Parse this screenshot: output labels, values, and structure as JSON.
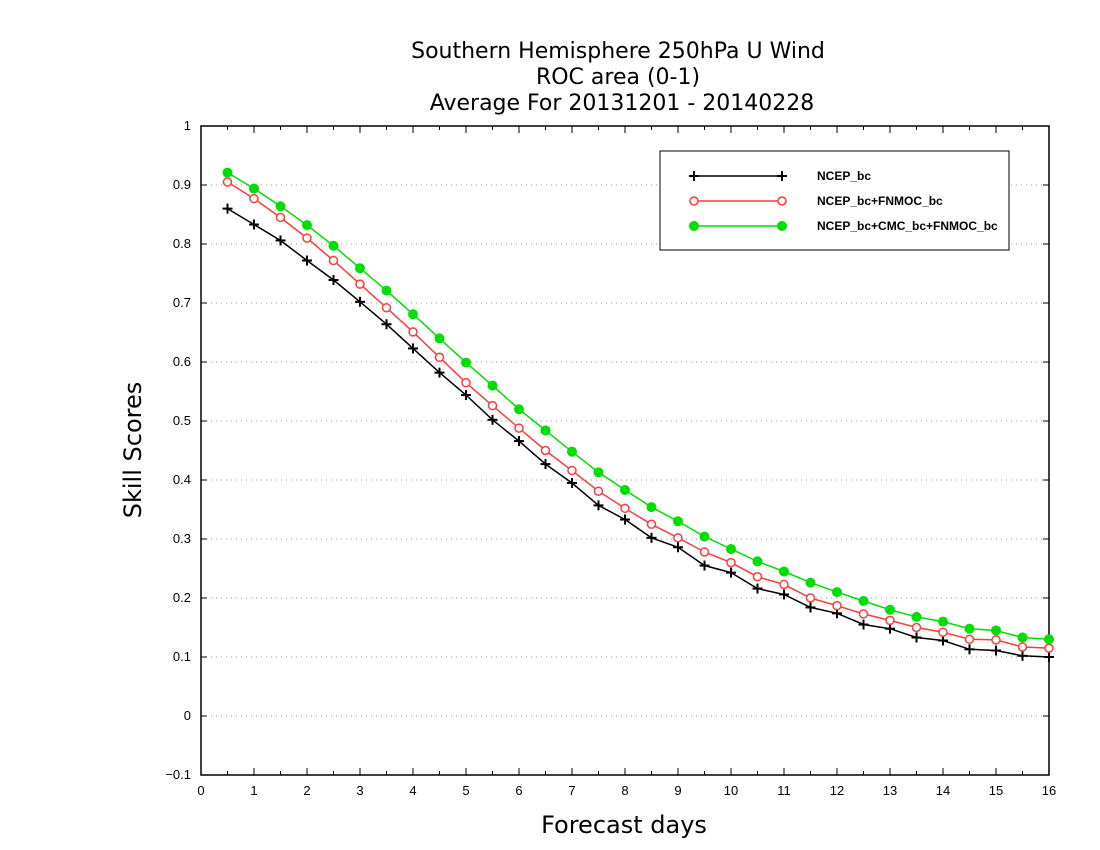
{
  "chart_data": {
    "type": "line",
    "title": [
      "Southern Hemisphere 250hPa U Wind",
      "ROC area (0-1)",
      "Average For 20131201 - 20140228"
    ],
    "xlabel": "Forecast days",
    "ylabel": "Skill Scores",
    "xlim": [
      0,
      16
    ],
    "ylim": [
      -0.1,
      1
    ],
    "xticks": [
      "0",
      "1",
      "2",
      "3",
      "4",
      "5",
      "6",
      "7",
      "8",
      "9",
      "10",
      "11",
      "12",
      "13",
      "14",
      "15",
      "16"
    ],
    "yticks": [
      "−0.1",
      "0",
      "0.1",
      "0.2",
      "0.3",
      "0.4",
      "0.5",
      "0.6",
      "0.7",
      "0.8",
      "0.9",
      "1"
    ],
    "ytick_values": [
      -0.1,
      0,
      0.1,
      0.2,
      0.3,
      0.4,
      0.5,
      0.6,
      0.7,
      0.8,
      0.9,
      1.0
    ],
    "grid": true,
    "legend_position": "top-right",
    "x": [
      0.5,
      1,
      1.5,
      2,
      2.5,
      3,
      3.5,
      4,
      4.5,
      5,
      5.5,
      6,
      6.5,
      7,
      7.5,
      8,
      8.5,
      9,
      9.5,
      10,
      10.5,
      11,
      11.5,
      12,
      12.5,
      13,
      13.5,
      14,
      14.5,
      15,
      15.5,
      16
    ],
    "series": [
      {
        "name": "NCEP_bc",
        "color": "#000000",
        "marker": "plus",
        "values": [
          0.86,
          0.833,
          0.806,
          0.772,
          0.739,
          0.702,
          0.664,
          0.623,
          0.582,
          0.544,
          0.502,
          0.466,
          0.427,
          0.395,
          0.357,
          0.333,
          0.302,
          0.286,
          0.255,
          0.243,
          0.216,
          0.206,
          0.184,
          0.174,
          0.155,
          0.148,
          0.133,
          0.128,
          0.113,
          0.111,
          0.102,
          0.1
        ]
      },
      {
        "name": "NCEP_bc+FNMOC_bc",
        "color": "#ff3b3b",
        "marker": "open-circle",
        "values": [
          0.905,
          0.877,
          0.845,
          0.81,
          0.772,
          0.732,
          0.692,
          0.651,
          0.608,
          0.565,
          0.526,
          0.488,
          0.45,
          0.416,
          0.381,
          0.352,
          0.325,
          0.302,
          0.278,
          0.26,
          0.236,
          0.223,
          0.2,
          0.187,
          0.173,
          0.162,
          0.15,
          0.142,
          0.13,
          0.129,
          0.117,
          0.115
        ]
      },
      {
        "name": "NCEP_bc+CMC_bc+FNMOC_bc",
        "color": "#00dd00",
        "marker": "filled-circle",
        "values": [
          0.921,
          0.894,
          0.864,
          0.832,
          0.797,
          0.759,
          0.721,
          0.681,
          0.64,
          0.599,
          0.56,
          0.52,
          0.484,
          0.448,
          0.413,
          0.383,
          0.354,
          0.33,
          0.304,
          0.283,
          0.262,
          0.245,
          0.226,
          0.21,
          0.195,
          0.18,
          0.168,
          0.16,
          0.148,
          0.145,
          0.133,
          0.13
        ]
      }
    ]
  }
}
